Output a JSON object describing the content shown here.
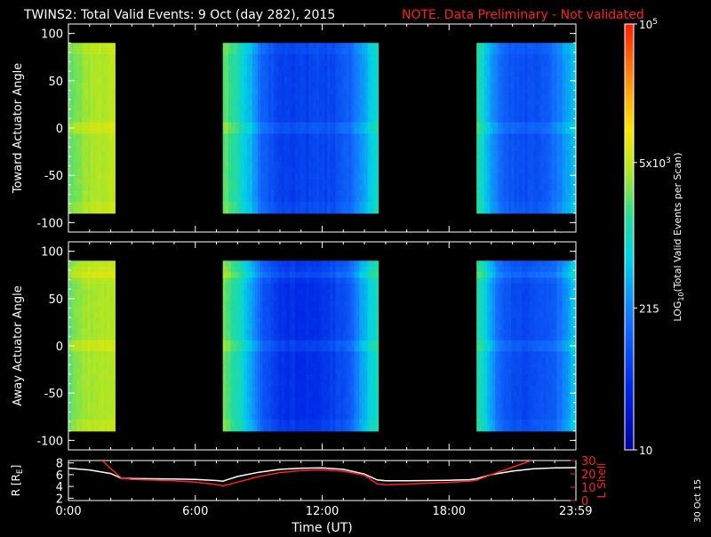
{
  "title": {
    "main": "TWINS2: Total Valid Events:  9 Oct (day 282), 2015",
    "note": "NOTE. Data Preliminary - Not validated",
    "note_color": "#ff2020"
  },
  "footer": {
    "date_stamp": "30 Oct 15"
  },
  "colorbar": {
    "label_prefix": "LOG",
    "label_sub": "10",
    "label_suffix": "(Total Valid Events per Scan)",
    "ticks": [
      {
        "value": 100000,
        "label": "10",
        "sup": "5"
      },
      {
        "value": 5000,
        "label": "5x10",
        "sup": "3"
      },
      {
        "value": 215,
        "label": "215",
        "sup": ""
      },
      {
        "value": 10,
        "label": "10",
        "sup": ""
      }
    ],
    "min": 10,
    "max": 100000,
    "scale": "log"
  },
  "chart_data": [
    {
      "type": "heatmap",
      "panel": "toward",
      "ylabel": "Toward Actuator Angle",
      "xlim": [
        0,
        24
      ],
      "ylim": [
        -110,
        110
      ],
      "yticks": [
        100,
        50,
        0,
        -50,
        -100
      ],
      "angle_range": [
        -90,
        90
      ],
      "x_units": "hours UT",
      "data_blocks": [
        {
          "start": 0.0,
          "end": 2.2,
          "log_profile": [
            3.35,
            3.5,
            3.6,
            3.65,
            3.65
          ]
        },
        {
          "start": 7.3,
          "end": 14.65,
          "log_profile": [
            3.4,
            3.1,
            2.6,
            2.0,
            1.85,
            1.8,
            1.8,
            1.85,
            1.9,
            2.05,
            2.5,
            3.0
          ]
        },
        {
          "start": 19.3,
          "end": 23.99,
          "log_profile": [
            3.2,
            2.6,
            2.1,
            1.95,
            1.9,
            1.95,
            2.1,
            2.4,
            2.8
          ]
        }
      ],
      "features": [
        {
          "angle": 0,
          "note": "brighter band near 0 deg"
        }
      ]
    },
    {
      "type": "heatmap",
      "panel": "away",
      "ylabel": "Away Actuator Angle",
      "xlim": [
        0,
        24
      ],
      "ylim": [
        -110,
        110
      ],
      "yticks": [
        100,
        50,
        0,
        -50,
        -100
      ],
      "angle_range": [
        -90,
        90
      ],
      "x_units": "hours UT",
      "data_blocks": [
        {
          "start": 0.0,
          "end": 2.2,
          "log_profile": [
            3.3,
            3.5,
            3.6,
            3.65,
            3.6
          ]
        },
        {
          "start": 7.3,
          "end": 14.65,
          "log_profile": [
            3.4,
            3.1,
            2.5,
            1.9,
            1.7,
            1.65,
            1.65,
            1.7,
            1.8,
            2.0,
            2.6,
            3.1
          ]
        },
        {
          "start": 19.3,
          "end": 23.99,
          "log_profile": [
            3.2,
            2.6,
            2.05,
            1.9,
            1.85,
            1.9,
            2.0,
            2.3,
            2.8
          ]
        }
      ],
      "features": [
        {
          "angle": 75,
          "note": "brighter band near 75 deg"
        },
        {
          "angle": 0,
          "note": "brighter band near 0 deg"
        }
      ]
    },
    {
      "type": "line",
      "panel": "orbit",
      "xlabel": "Time (UT)",
      "xticks": [
        "0:00",
        "6:00",
        "12:00",
        "18:00",
        "23:59"
      ],
      "xtick_values": [
        0,
        6,
        12,
        18,
        23.99
      ],
      "xlim": [
        0,
        24
      ],
      "left_axis": {
        "label": "R [R",
        "label_sub": "E",
        "label_end": "]",
        "ylim": [
          1.6,
          8.4
        ],
        "ticks": [
          8,
          6,
          4,
          2
        ]
      },
      "right_axis": {
        "label": "L Shell",
        "ylim": [
          0,
          30
        ],
        "ticks": [
          30,
          20,
          10,
          0
        ],
        "color": "#ff2020"
      },
      "series": [
        {
          "axis": "left",
          "color": "#ffffff",
          "x": [
            0,
            1,
            2,
            2.5,
            3,
            4,
            5,
            6,
            7,
            7.3,
            8,
            9,
            10,
            11,
            12,
            13,
            14,
            14.6,
            15,
            16,
            17,
            18,
            19,
            19.3,
            20,
            21,
            22,
            23,
            23.99
          ],
          "y": [
            7.1,
            6.8,
            6.2,
            5.4,
            5.35,
            5.3,
            5.25,
            5.2,
            5.0,
            4.9,
            5.7,
            6.4,
            6.9,
            7.1,
            7.15,
            6.9,
            6.1,
            5.1,
            4.95,
            4.95,
            5.0,
            5.05,
            5.15,
            5.3,
            6.0,
            6.6,
            7.0,
            7.15,
            7.2
          ]
        },
        {
          "axis": "right",
          "color": "#ff2020",
          "x": [
            1.6,
            2,
            2.5,
            3,
            4,
            5,
            6,
            7,
            7.3,
            8,
            9,
            10,
            11,
            12,
            13,
            14,
            14.6,
            15,
            16,
            17,
            18,
            19,
            19.3,
            20,
            21,
            21.9
          ],
          "y": [
            30,
            24,
            17,
            15.8,
            15.3,
            14.8,
            13.8,
            12.0,
            11.0,
            13.8,
            18.0,
            21.0,
            22.5,
            23.0,
            22.0,
            19.0,
            12.5,
            11.8,
            12.3,
            13.0,
            13.6,
            14.6,
            15.2,
            19.5,
            25.0,
            30
          ]
        }
      ]
    }
  ]
}
